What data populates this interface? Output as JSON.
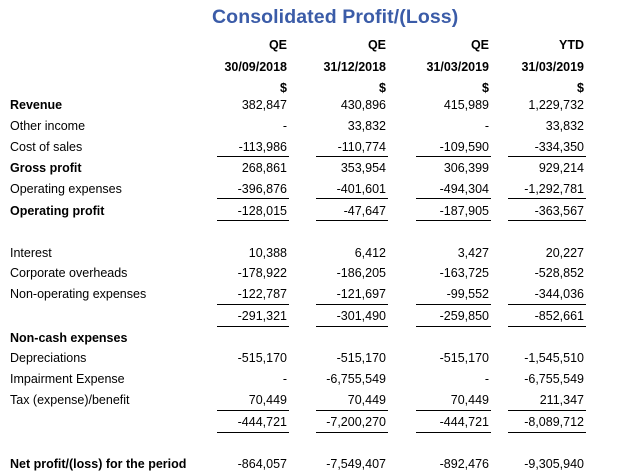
{
  "title": "Consolidated Profit/(Loss)",
  "columns": [
    {
      "period_type": "QE",
      "date": "30/09/2018",
      "currency": "$"
    },
    {
      "period_type": "QE",
      "date": "31/12/2018",
      "currency": "$"
    },
    {
      "period_type": "QE",
      "date": "31/03/2019",
      "currency": "$"
    },
    {
      "period_type": "YTD",
      "date": "31/03/2019",
      "currency": "$"
    }
  ],
  "rows": [
    {
      "label": "Revenue",
      "bold": true,
      "values": [
        "382,847",
        "430,896",
        "415,989",
        "1,229,732"
      ]
    },
    {
      "label": "Other income",
      "bold": false,
      "values": [
        "-",
        "33,832",
        "-",
        "33,832"
      ]
    },
    {
      "label": "Cost of sales",
      "bold": false,
      "values": [
        "-113,986",
        "-110,774",
        "-109,590",
        "-334,350"
      ]
    },
    {
      "label": "Gross profit",
      "bold": true,
      "values": [
        "268,861",
        "353,954",
        "306,399",
        "929,214"
      ]
    },
    {
      "label": "Operating expenses",
      "bold": false,
      "values": [
        "-396,876",
        "-401,601",
        "-494,304",
        "-1,292,781"
      ]
    },
    {
      "label": "Operating profit",
      "bold": true,
      "values": [
        "-128,015",
        "-47,647",
        "-187,905",
        "-363,567"
      ]
    },
    {
      "label": "Interest",
      "bold": false,
      "values": [
        "10,388",
        "6,412",
        "3,427",
        "20,227"
      ]
    },
    {
      "label": "Corporate overheads",
      "bold": false,
      "values": [
        "-178,922",
        "-186,205",
        "-163,725",
        "-528,852"
      ]
    },
    {
      "label": "Non-operating expenses",
      "bold": false,
      "values": [
        "-122,787",
        "-121,697",
        "-99,552",
        "-344,036"
      ]
    },
    {
      "label": "",
      "bold": false,
      "values": [
        "-291,321",
        "-301,490",
        "-259,850",
        "-852,661"
      ]
    },
    {
      "label": "Non-cash expenses",
      "bold": true,
      "values": [
        "",
        "",
        "",
        ""
      ]
    },
    {
      "label": "Depreciations",
      "bold": false,
      "values": [
        "-515,170",
        "-515,170",
        "-515,170",
        "-1,545,510"
      ]
    },
    {
      "label": "Impairment Expense",
      "bold": false,
      "values": [
        "-",
        "-6,755,549",
        "-",
        "-6,755,549"
      ]
    },
    {
      "label": "Tax (expense)/benefit",
      "bold": false,
      "values": [
        "70,449",
        "70,449",
        "70,449",
        "211,347"
      ]
    },
    {
      "label": "",
      "bold": false,
      "values": [
        "-444,721",
        "-7,200,270",
        "-444,721",
        "-8,089,712"
      ]
    },
    {
      "label": "Net profit/(loss) for the period",
      "bold": true,
      "values": [
        "-864,057",
        "-7,549,407",
        "-892,476",
        "-9,305,940"
      ]
    }
  ]
}
